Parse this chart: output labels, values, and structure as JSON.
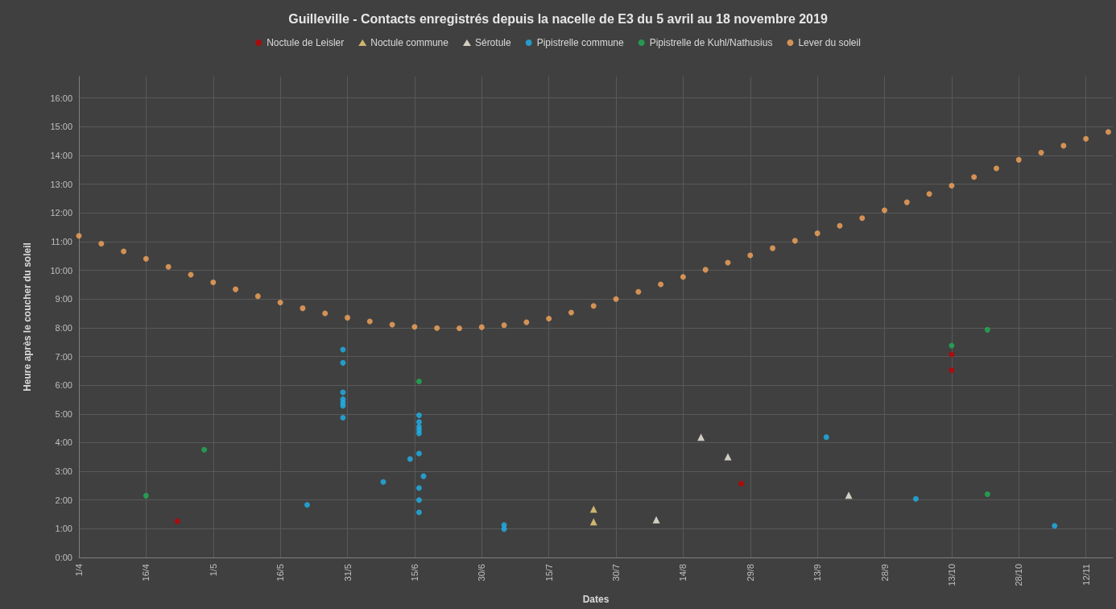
{
  "chart_data": {
    "type": "scatter",
    "title": "Guilleville - Contacts enregistrés depuis la nacelle de E3 du 5 avril au 18 novembre 2019",
    "xlabel": "Dates",
    "ylabel": "Heure après le coucher du soleil",
    "legend": "top",
    "grid": true,
    "xlim": [
      "2019-04-01",
      "2019-11-18"
    ],
    "xticks": [
      {
        "value": "2019-04-01",
        "label": "1/4"
      },
      {
        "value": "2019-04-16",
        "label": "16/4"
      },
      {
        "value": "2019-05-01",
        "label": "1/5"
      },
      {
        "value": "2019-05-16",
        "label": "16/5"
      },
      {
        "value": "2019-05-31",
        "label": "31/5"
      },
      {
        "value": "2019-06-15",
        "label": "15/6"
      },
      {
        "value": "2019-06-30",
        "label": "30/6"
      },
      {
        "value": "2019-07-15",
        "label": "15/7"
      },
      {
        "value": "2019-07-30",
        "label": "30/7"
      },
      {
        "value": "2019-08-14",
        "label": "14/8"
      },
      {
        "value": "2019-08-29",
        "label": "29/8"
      },
      {
        "value": "2019-09-13",
        "label": "13/9"
      },
      {
        "value": "2019-09-28",
        "label": "28/9"
      },
      {
        "value": "2019-10-13",
        "label": "13/10"
      },
      {
        "value": "2019-10-28",
        "label": "28/10"
      },
      {
        "value": "2019-11-12",
        "label": "12/11"
      }
    ],
    "ylim": [
      0,
      16.75
    ],
    "yticks": [
      {
        "value": 0,
        "label": "0:00"
      },
      {
        "value": 1,
        "label": "1:00"
      },
      {
        "value": 2,
        "label": "2:00"
      },
      {
        "value": 3,
        "label": "3:00"
      },
      {
        "value": 4,
        "label": "4:00"
      },
      {
        "value": 5,
        "label": "5:00"
      },
      {
        "value": 6,
        "label": "6:00"
      },
      {
        "value": 7,
        "label": "7:00"
      },
      {
        "value": 8,
        "label": "8:00"
      },
      {
        "value": 9,
        "label": "9:00"
      },
      {
        "value": 10,
        "label": "10:00"
      },
      {
        "value": 11,
        "label": "11:00"
      },
      {
        "value": 12,
        "label": "12:00"
      },
      {
        "value": 13,
        "label": "13:00"
      },
      {
        "value": 14,
        "label": "14:00"
      },
      {
        "value": 15,
        "label": "15:00"
      },
      {
        "value": 16,
        "label": "16:00"
      }
    ],
    "series": [
      {
        "name": "Noctule de Leisler",
        "color": "#c00000",
        "marker": "circle",
        "x": [
          "2019-04-23",
          "2019-08-27",
          "2019-10-13",
          "2019-10-13"
        ],
        "values": [
          1.26,
          2.57,
          7.07,
          6.52
        ]
      },
      {
        "name": "Noctule commune",
        "color": "#f2d27a",
        "marker": "triangle",
        "x": [
          "2019-07-25",
          "2019-07-25"
        ],
        "values": [
          1.68,
          1.24
        ]
      },
      {
        "name": "Sérotule",
        "color": "#f5f0e1",
        "marker": "triangle",
        "x": [
          "2019-08-08",
          "2019-08-18",
          "2019-08-24",
          "2019-09-20"
        ],
        "values": [
          1.31,
          4.19,
          3.51,
          2.17
        ]
      },
      {
        "name": "Pipistrelle commune",
        "color": "#1fb2ea",
        "marker": "circle",
        "x": [
          "2019-05-22",
          "2019-05-30",
          "2019-05-30",
          "2019-05-30",
          "2019-05-30",
          "2019-05-30",
          "2019-05-30",
          "2019-05-30",
          "2019-06-08",
          "2019-06-14",
          "2019-06-16",
          "2019-06-16",
          "2019-06-16",
          "2019-06-16",
          "2019-06-16",
          "2019-06-16",
          "2019-06-16",
          "2019-06-16",
          "2019-06-16",
          "2019-06-17",
          "2019-07-05",
          "2019-07-05",
          "2019-09-15",
          "2019-10-05",
          "2019-11-05"
        ],
        "values": [
          1.83,
          7.24,
          6.78,
          5.75,
          5.51,
          5.39,
          5.28,
          4.87,
          2.63,
          3.43,
          4.95,
          4.72,
          4.55,
          4.44,
          4.32,
          3.62,
          2.42,
          2.0,
          1.57,
          2.83,
          1.13,
          0.99,
          4.19,
          2.04,
          1.1
        ]
      },
      {
        "name": "Pipistrelle de Kuhl/Nathusius",
        "color": "#1fae55",
        "marker": "circle",
        "x": [
          "2019-04-16",
          "2019-04-29",
          "2019-06-16",
          "2019-10-13",
          "2019-10-21",
          "2019-10-21"
        ],
        "values": [
          2.15,
          3.75,
          6.13,
          7.38,
          7.93,
          2.2
        ]
      },
      {
        "name": "Lever du soleil",
        "color": "#f7a55a",
        "marker": "circle",
        "x": [
          "2019-04-01",
          "2019-04-06",
          "2019-04-11",
          "2019-04-16",
          "2019-04-21",
          "2019-04-26",
          "2019-05-01",
          "2019-05-06",
          "2019-05-11",
          "2019-05-16",
          "2019-05-21",
          "2019-05-26",
          "2019-05-31",
          "2019-06-05",
          "2019-06-10",
          "2019-06-15",
          "2019-06-20",
          "2019-06-25",
          "2019-06-30",
          "2019-07-05",
          "2019-07-10",
          "2019-07-15",
          "2019-07-20",
          "2019-07-25",
          "2019-07-30",
          "2019-08-04",
          "2019-08-09",
          "2019-08-14",
          "2019-08-19",
          "2019-08-24",
          "2019-08-29",
          "2019-09-03",
          "2019-09-08",
          "2019-09-13",
          "2019-09-18",
          "2019-09-23",
          "2019-09-28",
          "2019-10-03",
          "2019-10-08",
          "2019-10-13",
          "2019-10-18",
          "2019-10-23",
          "2019-10-28",
          "2019-11-02",
          "2019-11-07",
          "2019-11-12",
          "2019-11-17"
        ],
        "values": [
          11.2,
          10.93,
          10.66,
          10.4,
          10.12,
          9.85,
          9.58,
          9.34,
          9.1,
          8.88,
          8.68,
          8.5,
          8.35,
          8.22,
          8.11,
          8.03,
          7.99,
          7.98,
          8.02,
          8.09,
          8.19,
          8.32,
          8.53,
          8.76,
          9.0,
          9.25,
          9.51,
          9.77,
          10.02,
          10.27,
          10.52,
          10.77,
          11.03,
          11.29,
          11.55,
          11.82,
          12.09,
          12.37,
          12.66,
          12.95,
          13.25,
          13.55,
          13.85,
          14.1,
          14.34,
          14.58,
          14.82
        ]
      }
    ]
  }
}
